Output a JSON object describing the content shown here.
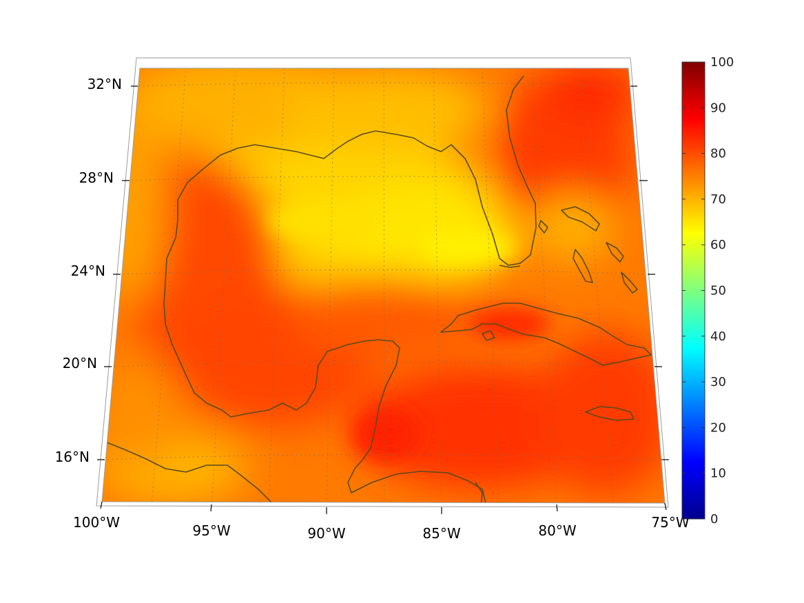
{
  "map": {
    "projection": "conic",
    "extent": {
      "lon": [
        -100,
        -75
      ],
      "lat": [
        14,
        33
      ]
    },
    "lat_labels": [
      "32°N",
      "28°N",
      "24°N",
      "20°N",
      "16°N"
    ],
    "lon_labels": [
      "100°W",
      "95°W",
      "90°W",
      "85°W",
      "80°W",
      "75°W"
    ],
    "coastline_color": "#5a4a1c",
    "graticule": "dotted"
  },
  "colorbar": {
    "colormap": "jet",
    "range": [
      0,
      100
    ],
    "ticks": [
      "0",
      "10",
      "20",
      "30",
      "40",
      "50",
      "60",
      "70",
      "80",
      "90",
      "100"
    ]
  },
  "field": {
    "dominant_colors": [
      "#ff8c00",
      "#ffd200",
      "#ff3c00"
    ],
    "description_levels": {
      "gulf_north": 65,
      "gulf_south": 85,
      "caribbean": 85,
      "atlantic_east": 85
    }
  }
}
